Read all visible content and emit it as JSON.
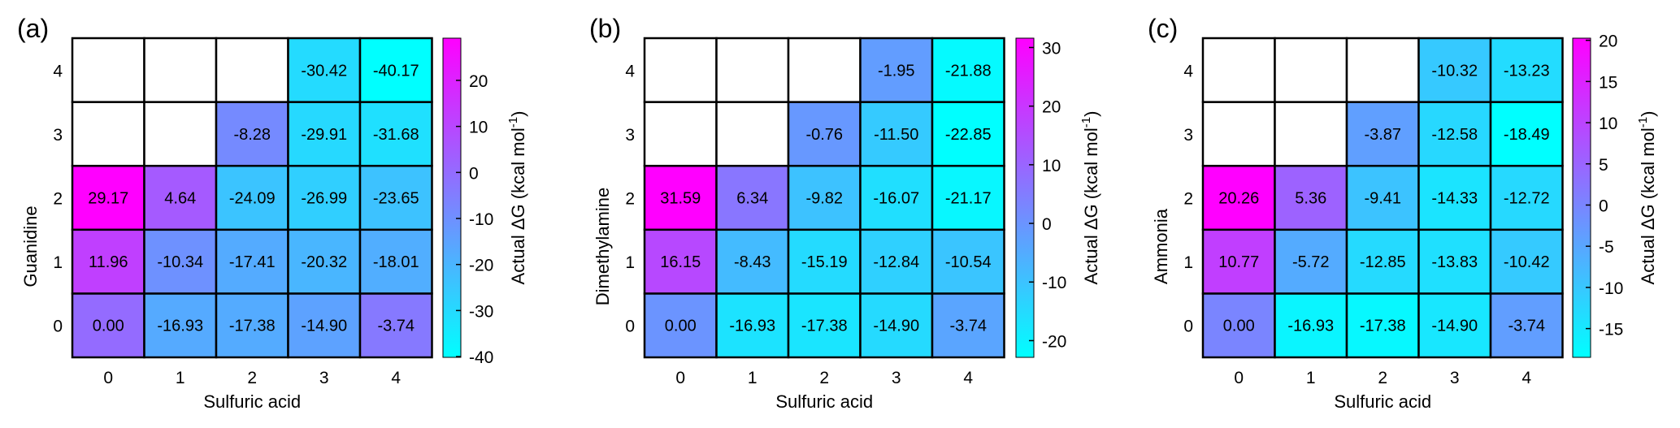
{
  "chart_data": [
    {
      "type": "heatmap",
      "panel_label": "(a)",
      "xlabel": "Sulfuric acid",
      "ylabel": "Guanidine",
      "x_categories": [
        "0",
        "1",
        "2",
        "3",
        "4"
      ],
      "y_categories": [
        "0",
        "1",
        "2",
        "3",
        "4"
      ],
      "values": [
        [
          "0.00",
          "-16.93",
          "-17.38",
          "-14.90",
          "-3.74"
        ],
        [
          "11.96",
          "-10.34",
          "-17.41",
          "-20.32",
          "-18.01"
        ],
        [
          "29.17",
          "4.64",
          "-24.09",
          "-26.99",
          "-23.65"
        ],
        [
          null,
          null,
          "-8.28",
          "-29.91",
          "-31.68"
        ],
        [
          null,
          null,
          null,
          "-30.42",
          "-40.17"
        ]
      ],
      "colorbar": {
        "label": "Actual ΔG (kcal mol",
        "label_sup": "-1",
        "label_end": ")",
        "min": -40.17,
        "max": 29.17,
        "ticks": [
          "20",
          "10",
          "0",
          "-10",
          "-20",
          "-30",
          "-40"
        ],
        "tick_values": [
          20,
          10,
          0,
          -10,
          -20,
          -30,
          -40
        ]
      }
    },
    {
      "type": "heatmap",
      "panel_label": "(b)",
      "xlabel": "Sulfuric acid",
      "ylabel": "Dimethylamine",
      "x_categories": [
        "0",
        "1",
        "2",
        "3",
        "4"
      ],
      "y_categories": [
        "0",
        "1",
        "2",
        "3",
        "4"
      ],
      "values": [
        [
          "0.00",
          "-16.93",
          "-17.38",
          "-14.90",
          "-3.74"
        ],
        [
          "16.15",
          "-8.43",
          "-15.19",
          "-12.84",
          "-10.54"
        ],
        [
          "31.59",
          "6.34",
          "-9.82",
          "-16.07",
          "-21.17"
        ],
        [
          null,
          null,
          "-0.76",
          "-11.50",
          "-22.85"
        ],
        [
          null,
          null,
          null,
          "-1.95",
          "-21.88"
        ]
      ],
      "colorbar": {
        "label": "Actual ΔG (kcal mol",
        "label_sup": "-1",
        "label_end": ")",
        "min": -22.85,
        "max": 31.59,
        "ticks": [
          "30",
          "20",
          "10",
          "0",
          "-10",
          "-20"
        ],
        "tick_values": [
          30,
          20,
          10,
          0,
          -10,
          -20
        ]
      }
    },
    {
      "type": "heatmap",
      "panel_label": "(c)",
      "xlabel": "Sulfuric acid",
      "ylabel": "Ammonia",
      "x_categories": [
        "0",
        "1",
        "2",
        "3",
        "4"
      ],
      "y_categories": [
        "0",
        "1",
        "2",
        "3",
        "4"
      ],
      "values": [
        [
          "0.00",
          "-16.93",
          "-17.38",
          "-14.90",
          "-3.74"
        ],
        [
          "10.77",
          "-5.72",
          "-12.85",
          "-13.83",
          "-10.42"
        ],
        [
          "20.26",
          "5.36",
          "-9.41",
          "-14.33",
          "-12.72"
        ],
        [
          null,
          null,
          "-3.87",
          "-12.58",
          "-18.49"
        ],
        [
          null,
          null,
          null,
          "-10.32",
          "-13.23"
        ]
      ],
      "colorbar": {
        "label": "Actual ΔG (kcal mol",
        "label_sup": "-1",
        "label_end": ")",
        "min": -18.49,
        "max": 20.26,
        "ticks": [
          "20",
          "15",
          "10",
          "5",
          "0",
          "-5",
          "-10",
          "-15"
        ],
        "tick_values": [
          20,
          15,
          10,
          5,
          0,
          -5,
          -10,
          -15
        ]
      }
    }
  ],
  "colors": {
    "low": "#00ffff",
    "high": "#ff00ff",
    "empty": "#ffffff",
    "grid": "#000000"
  }
}
